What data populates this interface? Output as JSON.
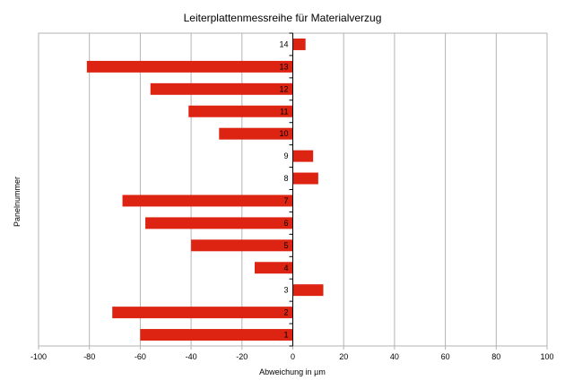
{
  "chart_data": {
    "type": "bar",
    "orientation": "horizontal",
    "title": "Leiterplattenmessreihe für Materialverzug",
    "xlabel": "Abweichung in µm",
    "ylabel": "Panelnummer",
    "categories": [
      "1",
      "2",
      "3",
      "4",
      "5",
      "6",
      "7",
      "8",
      "9",
      "10",
      "11",
      "12",
      "13",
      "14"
    ],
    "values": [
      -60,
      -71,
      12,
      -15,
      -40,
      -58,
      -67,
      10,
      8,
      -29,
      -41,
      -56,
      -81,
      5
    ],
    "xlim": [
      -100,
      100
    ],
    "xticks": [
      -100,
      -80,
      -60,
      -40,
      -20,
      0,
      20,
      40,
      60,
      80,
      100
    ],
    "grid": true,
    "legend": "none",
    "bar_color": "#dd2412"
  }
}
